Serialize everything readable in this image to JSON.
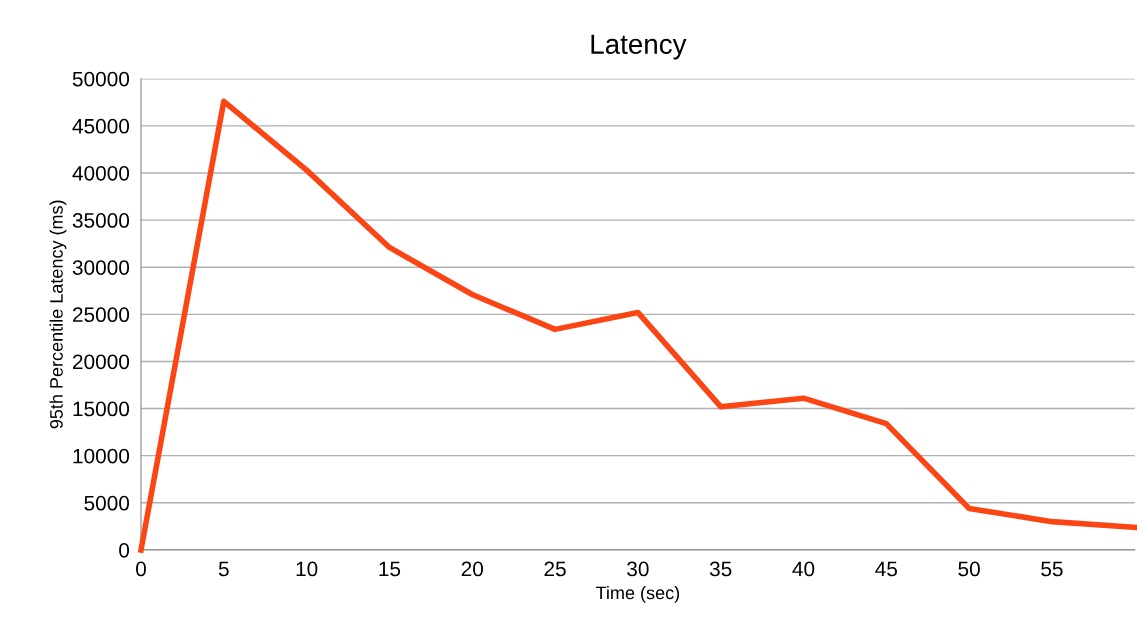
{
  "chart_data": {
    "type": "line",
    "title": "Latency",
    "xlabel": "Time (sec)",
    "ylabel": "95th Percentile Latency (ms)",
    "x": [
      0,
      5,
      10,
      15,
      20,
      25,
      30,
      35,
      40,
      45,
      50,
      55,
      60
    ],
    "series": [
      {
        "color": "#fc4514",
        "values": [
          0,
          47600,
          40300,
          32100,
          27100,
          23400,
          25200,
          15200,
          16100,
          13400,
          4400,
          3000,
          2400
        ]
      }
    ],
    "xlim": [
      0,
      60
    ],
    "xticks": [
      0,
      5,
      10,
      15,
      20,
      25,
      30,
      35,
      40,
      45,
      50,
      55
    ],
    "ylim": [
      0,
      50000
    ],
    "yticks": [
      0,
      5000,
      10000,
      15000,
      20000,
      25000,
      30000,
      35000,
      40000,
      45000,
      50000
    ],
    "grid": "y",
    "legend": false,
    "marker": "none",
    "line_style": "solid"
  }
}
